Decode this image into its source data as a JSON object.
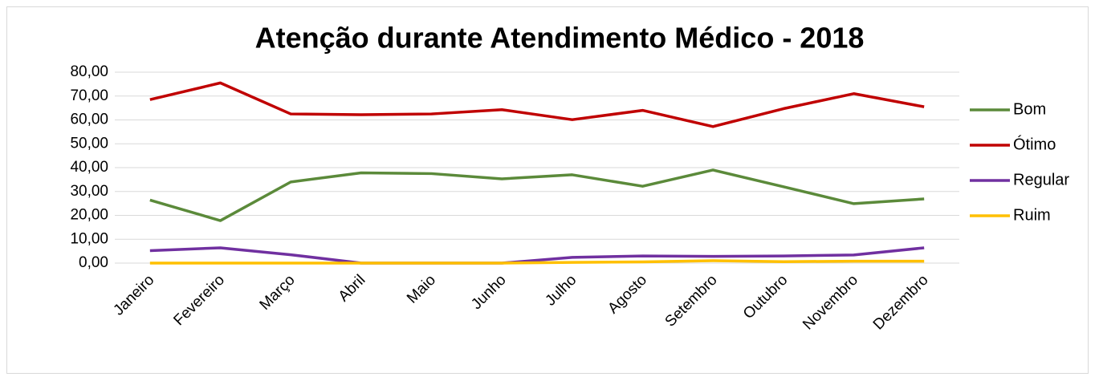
{
  "chart_data": {
    "type": "line",
    "title": "Atenção durante Atendimento Médico - 2018",
    "categories": [
      "Janeiro",
      "Fevereiro",
      "Março",
      "Abril",
      "Maio",
      "Junho",
      "Julho",
      "Agosto",
      "Setembro",
      "Outubro",
      "Novembro",
      "Dezembro"
    ],
    "series": [
      {
        "name": "Bom",
        "color": "#5b8a3a",
        "values": [
          26.4,
          17.8,
          34,
          37.8,
          37.5,
          35.3,
          37,
          32.2,
          39,
          32,
          24.9,
          26.9
        ]
      },
      {
        "name": "Ótimo",
        "color": "#c00000",
        "values": [
          68.5,
          75.5,
          62.5,
          62.2,
          62.5,
          64.3,
          60.1,
          64,
          57.2,
          64.7,
          71,
          65.5
        ]
      },
      {
        "name": "Regular",
        "color": "#7030a0",
        "values": [
          5.2,
          6.4,
          3.5,
          0,
          0,
          0,
          2.4,
          3,
          2.8,
          3,
          3.4,
          6.4
        ]
      },
      {
        "name": "Ruim",
        "color": "#ffc000",
        "values": [
          0,
          0,
          0,
          0,
          0,
          0,
          0.3,
          0.5,
          1,
          0.6,
          0.8,
          0.8
        ]
      }
    ],
    "ylim": [
      0,
      80
    ],
    "yticks": [
      {
        "value": 0,
        "label": "0,00"
      },
      {
        "value": 10,
        "label": "10,00"
      },
      {
        "value": 20,
        "label": "20,00"
      },
      {
        "value": 30,
        "label": "30,00"
      },
      {
        "value": 40,
        "label": "40,00"
      },
      {
        "value": 50,
        "label": "50,00"
      },
      {
        "value": 60,
        "label": "60,00"
      },
      {
        "value": 70,
        "label": "70,00"
      },
      {
        "value": 80,
        "label": "80,00"
      }
    ],
    "grid": true,
    "legend": "right"
  }
}
